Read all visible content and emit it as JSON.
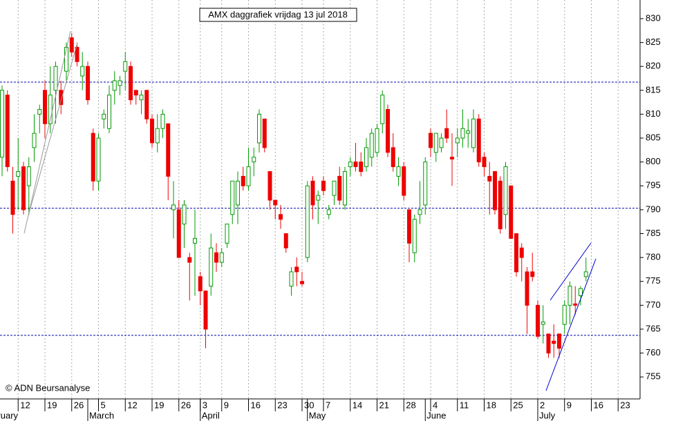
{
  "chart_data": {
    "type": "candlestick",
    "title": "AMX daggrafiek vrijdag 13 jul 2018",
    "credit": "© ADN Beursanalyse",
    "categories": [
      null,
      null,
      null,
      null,
      null,
      null,
      null,
      "12",
      null,
      null,
      null,
      null,
      "19",
      null,
      null,
      null,
      null,
      "26",
      null,
      null,
      null,
      null,
      "5",
      null,
      null,
      null,
      null,
      "12",
      null,
      null,
      null,
      null,
      "19",
      null,
      null,
      null,
      null,
      "26",
      null,
      null,
      null,
      "3",
      null,
      null,
      null,
      "9",
      null,
      null,
      null,
      null,
      "16",
      null,
      null,
      null,
      null,
      "23",
      null,
      null,
      null,
      null,
      "30",
      null,
      null,
      null,
      "7",
      null,
      null,
      null,
      null,
      "14",
      null,
      null,
      null,
      null,
      "21",
      null,
      null,
      null,
      null,
      "28",
      null,
      null,
      null,
      null,
      "4",
      null,
      null,
      null,
      null,
      "11",
      null,
      null,
      null,
      null,
      "18",
      null,
      null,
      null,
      null,
      "25",
      null,
      null,
      null,
      null,
      "2",
      null,
      null,
      null,
      null,
      "9",
      null,
      null,
      null,
      null,
      "16",
      null,
      null,
      null,
      null,
      "23",
      null,
      null,
      null,
      null
    ],
    "months": [
      "February",
      null,
      null,
      null,
      null,
      null,
      null,
      null,
      null,
      null,
      null,
      null,
      null,
      null,
      null,
      null,
      null,
      null,
      null,
      null,
      "March",
      null,
      null,
      null,
      null,
      null,
      null,
      null,
      null,
      null,
      null,
      null,
      null,
      null,
      null,
      null,
      null,
      null,
      null,
      null,
      null,
      "April",
      null,
      null,
      null,
      null,
      null,
      null,
      null,
      null,
      null,
      null,
      null,
      null,
      null,
      null,
      null,
      null,
      null,
      null,
      null,
      "May",
      null,
      null,
      null,
      null,
      null,
      null,
      null,
      null,
      null,
      null,
      null,
      null,
      null,
      null,
      null,
      null,
      null,
      null,
      null,
      null,
      null,
      "June",
      null,
      null,
      null,
      null,
      null,
      null,
      null,
      null,
      null,
      null,
      null,
      null,
      null,
      null,
      null,
      null,
      null,
      null,
      null,
      null,
      "July",
      null,
      null,
      null,
      null,
      null,
      null,
      null,
      null,
      null,
      null,
      null,
      null,
      null,
      null,
      null,
      null,
      null,
      null,
      null
    ],
    "open": [
      null,
      null,
      null,
      null,
      801,
      814,
      796,
      797,
      799,
      795,
      803,
      810,
      815,
      808,
      815,
      815,
      819,
      826,
      824,
      818,
      820,
      806,
      796,
      809,
      807,
      815,
      816,
      819,
      820,
      815,
      813,
      815,
      809,
      804,
      807,
      808,
      790,
      790,
      787,
      780,
      783,
      776,
      773,
      774,
      781,
      779,
      783,
      789,
      791,
      797,
      795,
      800,
      804,
      809,
      798,
      792,
      789,
      785,
      774,
      778,
      775,
      780,
      796,
      792,
      796,
      789,
      793,
      797,
      791,
      799,
      800,
      800,
      799,
      801,
      802,
      808,
      811,
      803,
      797,
      799,
      790,
      781,
      789,
      791,
      806,
      802,
      803,
      807,
      801,
      804,
      805,
      806,
      803,
      809,
      801,
      797,
      798,
      796,
      789,
      795,
      785,
      782,
      777,
      777,
      770,
      766,
      764,
      762.5,
      764,
      766,
      770,
      770.3,
      772,
      776,
      null,
      null,
      null,
      null,
      null,
      null,
      null,
      null,
      null,
      null
    ],
    "high": [
      null,
      null,
      null,
      null,
      816,
      815,
      799,
      805,
      800,
      801,
      810,
      812,
      817,
      820,
      821,
      817,
      825,
      827,
      825,
      823,
      821,
      807,
      806,
      811,
      816,
      819,
      818,
      823,
      821,
      815,
      815,
      815,
      810,
      810,
      811,
      808,
      796,
      792,
      792,
      781,
      790,
      777,
      773,
      785,
      783,
      782,
      787,
      796,
      798,
      799,
      803,
      803,
      811,
      809,
      798,
      792,
      791,
      785,
      778,
      780,
      777,
      796,
      797,
      794,
      797,
      791,
      796,
      799,
      799,
      801,
      804,
      802,
      805,
      807,
      808,
      815,
      812,
      806,
      801,
      800,
      790,
      789,
      796,
      801,
      807,
      806,
      806,
      811,
      806,
      807,
      811,
      809,
      811,
      810,
      802,
      800,
      798,
      797,
      800,
      795,
      785,
      783,
      778,
      781,
      771,
      770,
      764,
      766,
      764,
      771,
      775,
      774,
      774,
      780,
      null,
      null,
      null,
      null,
      null,
      null,
      null,
      null,
      null,
      null
    ],
    "low": [
      null,
      null,
      null,
      null,
      797,
      798,
      785,
      790,
      789,
      789,
      800,
      806,
      805,
      806,
      808,
      810,
      817,
      822,
      820,
      815,
      812,
      794,
      794,
      807,
      806,
      812,
      814,
      815,
      812,
      812,
      810,
      808,
      803,
      802,
      805,
      792,
      784,
      780,
      782,
      771,
      772,
      770,
      761,
      772,
      777,
      778,
      782,
      787,
      787,
      794,
      794,
      797,
      802,
      802,
      790,
      788,
      786,
      781,
      772,
      774,
      774,
      779,
      788,
      787,
      793,
      788,
      791,
      791,
      790,
      797,
      798,
      797,
      798,
      799,
      801,
      806,
      801,
      798,
      795,
      792,
      779,
      779,
      787,
      789,
      801,
      800,
      802,
      804,
      795,
      801,
      803,
      803,
      802,
      799,
      797,
      789,
      789,
      785,
      786,
      784,
      776,
      775,
      764,
      775,
      763,
      762,
      759,
      759,
      759,
      764,
      766,
      768,
      770,
      775,
      null,
      null,
      null,
      null,
      null,
      null,
      null,
      null,
      null,
      null
    ],
    "close": [
      null,
      null,
      null,
      null,
      815,
      799,
      789,
      798,
      790,
      799,
      806,
      811,
      808,
      814,
      820,
      812,
      824,
      823,
      821,
      820,
      813,
      796,
      805,
      810,
      814,
      817,
      817,
      821,
      813,
      814,
      814,
      809,
      804,
      807,
      810,
      797,
      791,
      780,
      791,
      779,
      784,
      773,
      765,
      782,
      779,
      781,
      787,
      796,
      796,
      795,
      799,
      801,
      810,
      803,
      792,
      791,
      788,
      782,
      777,
      777,
      774.5,
      795,
      791,
      793,
      794,
      790,
      796,
      792,
      798,
      800,
      799,
      798,
      803,
      806,
      807,
      814,
      802,
      799,
      799,
      793,
      783,
      788,
      790,
      800,
      803,
      806,
      805,
      805,
      800.6,
      805,
      807,
      806.5,
      809,
      800,
      799,
      796,
      790,
      786,
      799,
      784,
      777,
      780,
      770,
      776,
      763.5,
      766.5,
      760,
      762,
      761,
      770,
      774,
      770,
      773.5,
      777,
      null,
      null,
      null,
      null,
      null,
      null,
      null,
      null,
      null,
      null
    ],
    "up_color": "#009900",
    "down_color": "#ee0000",
    "levels": [
      816.7,
      790.3,
      763.7
    ],
    "level_color": "#0000aa",
    "ylim": [
      750.4,
      833.9
    ],
    "yticks": [
      755,
      760,
      765,
      770,
      775,
      780,
      785,
      790,
      795,
      800,
      805,
      810,
      815,
      820,
      825,
      830
    ],
    "grid": true
  }
}
